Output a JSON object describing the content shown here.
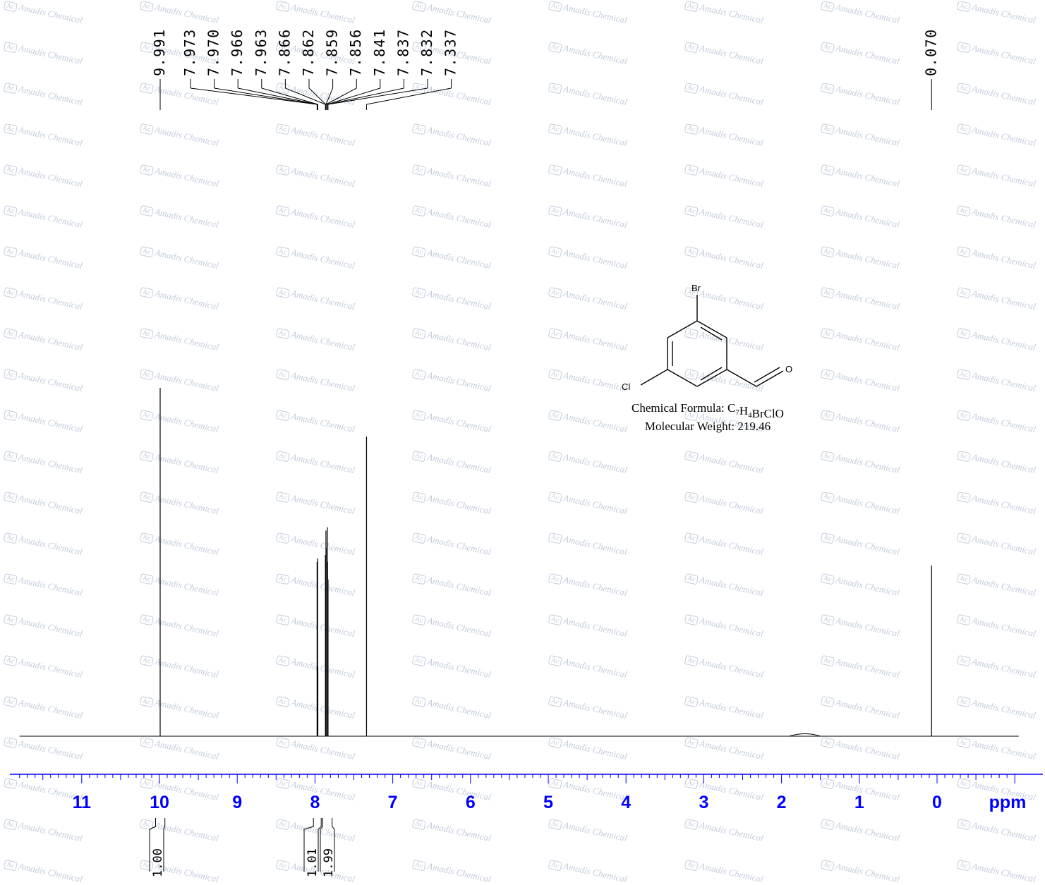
{
  "watermark": {
    "logo": "Ac",
    "text": "Amadis Chemical"
  },
  "compound": {
    "substituents": {
      "top": "Br",
      "left": "Cl",
      "aldehyde_o": "O"
    },
    "formula_label": "Chemical Formula: C7H4BrClO",
    "weight_label": "Molecular Weight: 219.46"
  },
  "chart_data": {
    "type": "line",
    "title": "",
    "xlabel": "ppm",
    "ylabel": "",
    "x_reversed": true,
    "xlim": [
      11.8,
      -1.05
    ],
    "ticks": [
      "11",
      "10",
      "9",
      "8",
      "7",
      "6",
      "5",
      "4",
      "3",
      "2",
      "1",
      "0"
    ],
    "axis_unit_label": "ppm",
    "axis_color": "#0000ff",
    "peaks": [
      {
        "shift": 9.991,
        "height": 1.0
      },
      {
        "shift": 7.973,
        "height": 0.5
      },
      {
        "shift": 7.97,
        "height": 0.2
      },
      {
        "shift": 7.966,
        "height": 0.51
      },
      {
        "shift": 7.963,
        "height": 0.2
      },
      {
        "shift": 7.866,
        "height": 0.52
      },
      {
        "shift": 7.862,
        "height": 0.45
      },
      {
        "shift": 7.859,
        "height": 0.59
      },
      {
        "shift": 7.856,
        "height": 0.54
      },
      {
        "shift": 7.841,
        "height": 0.6
      },
      {
        "shift": 7.837,
        "height": 0.5
      },
      {
        "shift": 7.832,
        "height": 0.45
      },
      {
        "shift": 7.337,
        "height": 0.86
      },
      {
        "shift": 0.07,
        "height": 0.49
      },
      {
        "shift": 1.7,
        "height": 0.01,
        "broad": true
      }
    ],
    "peak_labels": [
      {
        "group": "left",
        "values": [
          "9.991"
        ],
        "shifts": [
          9.991
        ]
      },
      {
        "group": "aromatic",
        "values": [
          "7.973",
          "7.970",
          "7.966",
          "7.963",
          "7.866",
          "7.862",
          "7.859",
          "7.856",
          "7.841",
          "7.837",
          "7.832",
          "7.337"
        ],
        "shifts": [
          7.973,
          7.97,
          7.966,
          7.963,
          7.866,
          7.862,
          7.859,
          7.856,
          7.841,
          7.837,
          7.832,
          7.337
        ]
      },
      {
        "group": "right",
        "values": [
          "0.070"
        ],
        "shifts": [
          0.07
        ]
      }
    ],
    "integrals": [
      {
        "label": "1.00",
        "from": 10.05,
        "to": 9.93
      },
      {
        "label": "1.01",
        "from": 8.02,
        "to": 7.92
      },
      {
        "label": "1.99",
        "from": 7.9,
        "to": 7.78
      }
    ]
  }
}
